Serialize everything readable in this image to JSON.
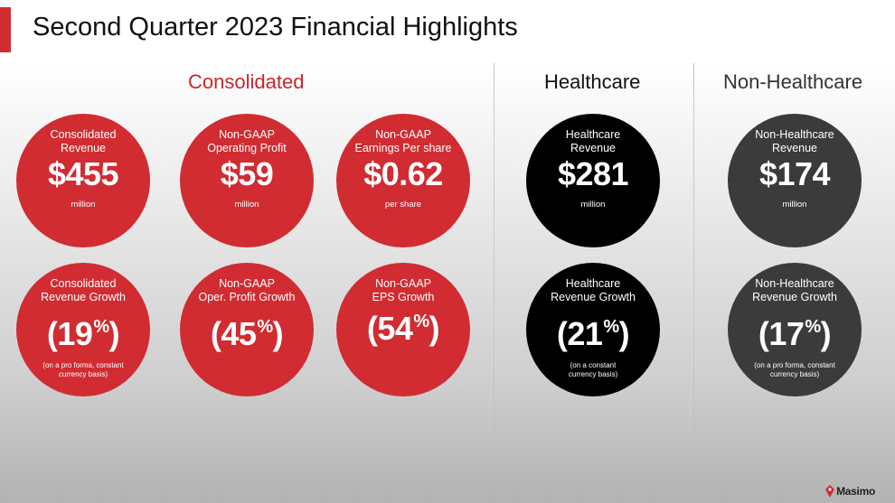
{
  "title": "Second Quarter 2023 Financial Highlights",
  "colors": {
    "accent": "#d02c32",
    "healthcare": "#000000",
    "non_healthcare": "#3b3b3b",
    "section_red": "#c8272d"
  },
  "sections": {
    "consolidated": "Consolidated",
    "healthcare": "Healthcare",
    "non_healthcare": "Non-Healthcare"
  },
  "metrics": {
    "cons_revenue": {
      "label": "Consolidated\nRevenue",
      "value": "$455",
      "sub": "million"
    },
    "op_profit": {
      "label": "Non-GAAP\nOperating Profit",
      "value": "$59",
      "sub": "million"
    },
    "eps": {
      "label": "Non-GAAP\nEarnings Per share",
      "value": "$0.62",
      "sub": "per share"
    },
    "hc_revenue": {
      "label": "Healthcare\nRevenue",
      "value": "$281",
      "sub": "million"
    },
    "nhc_revenue": {
      "label": "Non-Healthcare\nRevenue",
      "value": "$174",
      "sub": "million"
    },
    "cons_growth": {
      "label": "Consolidated\nRevenue Growth",
      "value": "(19",
      "pct": "%",
      "close": ")",
      "note": "(on a pro forma, constant\ncurrency basis)"
    },
    "op_growth": {
      "label": "Non-GAAP\nOper. Profit Growth",
      "value": "(45",
      "pct": "%",
      "close": ")",
      "note": ""
    },
    "eps_growth": {
      "label": "Non-GAAP\nEPS Growth",
      "value": "(54",
      "pct": "%",
      "close": ")",
      "note": ""
    },
    "hc_growth": {
      "label": "Healthcare\nRevenue Growth",
      "value": "(21",
      "pct": "%",
      "close": ")",
      "note": "(on a constant\ncurrency basis)"
    },
    "nhc_growth": {
      "label": "Non-Healthcare\nRevenue Growth",
      "value": "(17",
      "pct": "%",
      "close": ")",
      "note": "(on a pro forma, constant\ncurrency basis)"
    }
  },
  "logo": {
    "text": "Masimo",
    "icon": "masimo-logo-icon"
  }
}
